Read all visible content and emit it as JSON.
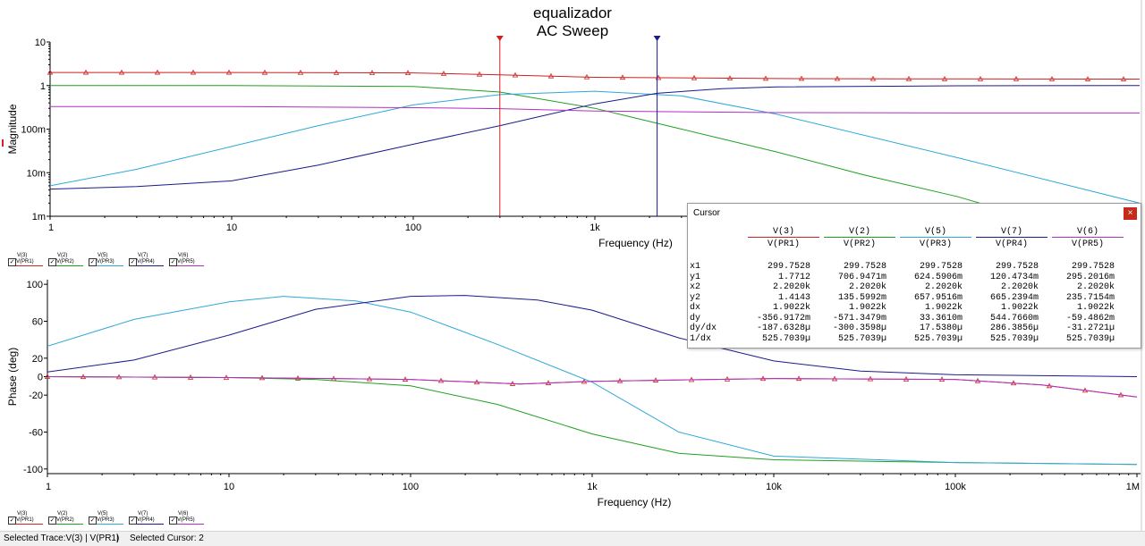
{
  "title": {
    "line1": "equalizador",
    "line2": "AC Sweep"
  },
  "colors": {
    "red": "#d02020",
    "green": "#1fa01f",
    "lightblue": "#2fa8d8",
    "navy": "#1a1a8c",
    "magenta": "#b030c0",
    "axis": "#000000"
  },
  "legend": [
    {
      "name": "V(3)",
      "probe": "V(PR1)",
      "color": "#d02020",
      "checked": true
    },
    {
      "name": "V(2)",
      "probe": "V(PR2)",
      "color": "#1fa01f",
      "checked": true
    },
    {
      "name": "V(5)",
      "probe": "V(PR3)",
      "color": "#2fa8d8",
      "checked": true
    },
    {
      "name": "V(7)",
      "probe": "V(PR4)",
      "color": "#1a1a8c",
      "checked": true
    },
    {
      "name": "V(6)",
      "probe": "V(PR5)",
      "color": "#b030c0",
      "checked": true
    }
  ],
  "chart_data": [
    {
      "type": "line",
      "title": "equalizador AC Sweep",
      "xlabel": "Frequency (Hz)",
      "ylabel": "Magnitude",
      "xscale": "log",
      "yscale": "log",
      "xlim": [
        1,
        1000000
      ],
      "ylim": [
        0.001,
        10
      ],
      "xticks": [
        {
          "v": 1,
          "t": "1"
        },
        {
          "v": 10,
          "t": "10"
        },
        {
          "v": 100,
          "t": "100"
        },
        {
          "v": 1000,
          "t": "1k"
        }
      ],
      "yticks": [
        {
          "v": 10,
          "t": "10"
        },
        {
          "v": 1,
          "t": "1"
        },
        {
          "v": 0.1,
          "t": "100m"
        },
        {
          "v": 0.01,
          "t": "10m"
        },
        {
          "v": 0.001,
          "t": "1m"
        }
      ],
      "cursors": [
        {
          "x": 299.7528,
          "color": "#d02020"
        },
        {
          "x": 2202,
          "color": "#1a1a8c"
        }
      ],
      "series": [
        {
          "name": "V(3)",
          "color": "#d02020",
          "markers": true,
          "x": [
            1,
            10,
            100,
            300,
            1000,
            10000,
            100000,
            1000000
          ],
          "y": [
            2.0,
            2.0,
            1.95,
            1.77,
            1.55,
            1.45,
            1.42,
            1.41
          ]
        },
        {
          "name": "V(2)",
          "color": "#1fa01f",
          "x": [
            1,
            10,
            100,
            300,
            1000,
            3000,
            10000,
            30000,
            100000,
            200000
          ],
          "y": [
            1.0,
            1.0,
            0.95,
            0.71,
            0.3,
            0.1,
            0.03,
            0.009,
            0.0028,
            0.0012
          ]
        },
        {
          "name": "V(5)",
          "color": "#2fa8d8",
          "x": [
            1,
            3,
            10,
            30,
            100,
            300,
            1000,
            3000,
            10000,
            100000,
            1000000
          ],
          "y": [
            0.005,
            0.012,
            0.04,
            0.12,
            0.36,
            0.62,
            0.74,
            0.58,
            0.22,
            0.022,
            0.002
          ]
        },
        {
          "name": "V(7)",
          "color": "#1a1a8c",
          "x": [
            1,
            3,
            10,
            30,
            100,
            300,
            1000,
            2202,
            5000,
            10000,
            100000,
            1000000
          ],
          "y": [
            0.0042,
            0.0048,
            0.0065,
            0.015,
            0.045,
            0.12,
            0.38,
            0.665,
            0.85,
            0.93,
            0.99,
            1.0
          ]
        },
        {
          "name": "V(6)",
          "color": "#b030c0",
          "x": [
            1,
            10,
            100,
            300,
            1000,
            10000,
            100000,
            1000000
          ],
          "y": [
            0.33,
            0.33,
            0.31,
            0.295,
            0.26,
            0.24,
            0.235,
            0.235
          ]
        }
      ]
    },
    {
      "type": "line",
      "xlabel": "Frequency (Hz)",
      "ylabel": "Phase (deg)",
      "xscale": "log",
      "xlim": [
        1,
        1000000
      ],
      "ylim": [
        -105,
        105
      ],
      "xticks": [
        {
          "v": 1,
          "t": "1"
        },
        {
          "v": 10,
          "t": "10"
        },
        {
          "v": 100,
          "t": "100"
        },
        {
          "v": 1000,
          "t": "1k"
        },
        {
          "v": 10000,
          "t": "10k"
        },
        {
          "v": 100000,
          "t": "100k"
        },
        {
          "v": 1000000,
          "t": "1M"
        }
      ],
      "yticks": [
        {
          "v": 100,
          "t": "100"
        },
        {
          "v": 60,
          "t": "60"
        },
        {
          "v": 20,
          "t": "20"
        },
        {
          "v": 0,
          "t": "0"
        },
        {
          "v": -20,
          "t": "-20"
        },
        {
          "v": -60,
          "t": "-60"
        },
        {
          "v": -100,
          "t": "-100"
        }
      ],
      "series": [
        {
          "name": "V(3)",
          "color": "#d02020",
          "markers": true,
          "x": [
            1,
            10,
            100,
            400,
            1000,
            10000,
            100000,
            300000,
            1000000
          ],
          "y": [
            0,
            -1,
            -3,
            -8,
            -5,
            -2,
            -3,
            -9,
            -22
          ]
        },
        {
          "name": "V(2)",
          "color": "#1fa01f",
          "x": [
            1,
            10,
            30,
            100,
            300,
            1000,
            3000,
            10000,
            100000,
            1000000
          ],
          "y": [
            0,
            -1,
            -3,
            -10,
            -30,
            -62,
            -83,
            -90,
            -93,
            -95
          ]
        },
        {
          "name": "V(5)",
          "color": "#2fa8d8",
          "x": [
            1,
            3,
            10,
            20,
            50,
            100,
            300,
            1000,
            3000,
            10000,
            100000,
            1000000
          ],
          "y": [
            33,
            62,
            81,
            87,
            82,
            70,
            35,
            -6,
            -60,
            -86,
            -93,
            -95
          ]
        },
        {
          "name": "V(7)",
          "color": "#1a1a8c",
          "x": [
            1,
            3,
            10,
            30,
            100,
            200,
            500,
            1000,
            3000,
            10000,
            30000,
            100000,
            1000000
          ],
          "y": [
            5,
            18,
            45,
            73,
            87,
            88,
            83,
            72,
            42,
            17,
            6,
            2,
            0
          ]
        },
        {
          "name": "V(6)",
          "color": "#b030c0",
          "x": [
            1,
            10,
            100,
            400,
            1000,
            10000,
            100000,
            300000,
            1000000
          ],
          "y": [
            0,
            -1,
            -3,
            -8,
            -5,
            -2,
            -3,
            -9,
            -22
          ]
        }
      ]
    }
  ],
  "cursor_window": {
    "title": "Cursor",
    "close": "×",
    "columns": [
      {
        "top": "V(3)",
        "bottom": "V(PR1)",
        "color": "#d02020"
      },
      {
        "top": "V(2)",
        "bottom": "V(PR2)",
        "color": "#1fa01f"
      },
      {
        "top": "V(5)",
        "bottom": "V(PR3)",
        "color": "#2fa8d8"
      },
      {
        "top": "V(7)",
        "bottom": "V(PR4)",
        "color": "#1a1a8c"
      },
      {
        "top": "V(6)",
        "bottom": "V(PR5)",
        "color": "#b030c0"
      }
    ],
    "rows": [
      {
        "label": "x1",
        "values": [
          "299.7528",
          "299.7528",
          "299.7528",
          "299.7528",
          "299.7528"
        ]
      },
      {
        "label": "y1",
        "values": [
          "1.7712",
          "706.9471m",
          "624.5906m",
          "120.4734m",
          "295.2016m"
        ]
      },
      {
        "label": "x2",
        "values": [
          "2.2020k",
          "2.2020k",
          "2.2020k",
          "2.2020k",
          "2.2020k"
        ]
      },
      {
        "label": "y2",
        "values": [
          "1.4143",
          "135.5992m",
          "657.9516m",
          "665.2394m",
          "235.7154m"
        ]
      },
      {
        "label": "dx",
        "values": [
          "1.9022k",
          "1.9022k",
          "1.9022k",
          "1.9022k",
          "1.9022k"
        ]
      },
      {
        "label": "dy",
        "values": [
          "-356.9172m",
          "-571.3479m",
          "33.3610m",
          "544.7660m",
          "-59.4862m"
        ]
      },
      {
        "label": "dy/dx",
        "values": [
          "-187.6328µ",
          "-300.3598µ",
          "17.5380µ",
          "286.3856µ",
          "-31.2721µ"
        ]
      },
      {
        "label": "1/dx",
        "values": [
          "525.7039µ",
          "525.7039µ",
          "525.7039µ",
          "525.7039µ",
          "525.7039µ"
        ]
      }
    ]
  },
  "status": {
    "selected_trace": "Selected Trace:V(3) | V(PR1)",
    "separator": "|",
    "selected_cursor": "Selected Cursor: 2"
  }
}
